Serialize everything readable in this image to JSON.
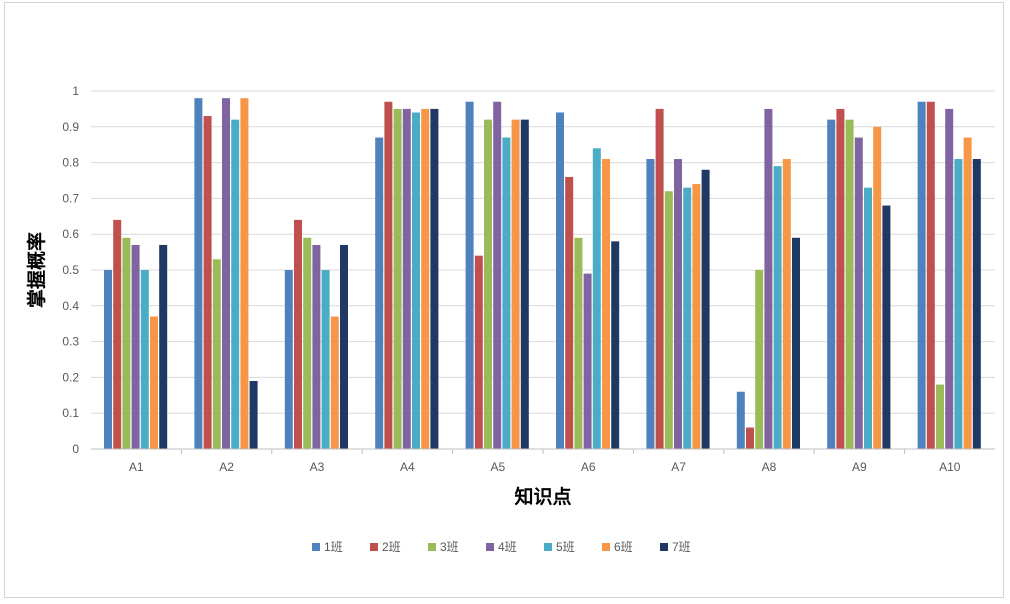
{
  "chart_data": {
    "type": "bar",
    "title": "",
    "xlabel": "知识点",
    "ylabel": "掌握概率",
    "ylim": [
      0,
      1
    ],
    "yticks": [
      "0",
      "0.1",
      "0.2",
      "0.3",
      "0.4",
      "0.5",
      "0.6",
      "0.7",
      "0.8",
      "0.9",
      "1"
    ],
    "grid": true,
    "legend_position": "bottom",
    "categories": [
      "A1",
      "A2",
      "A3",
      "A4",
      "A5",
      "A6",
      "A7",
      "A8",
      "A9",
      "A10"
    ],
    "series": [
      {
        "name": "1班",
        "color": "#4F81BD",
        "values": [
          0.5,
          0.98,
          0.5,
          0.87,
          0.97,
          0.94,
          0.81,
          0.16,
          0.92,
          0.97
        ]
      },
      {
        "name": "2班",
        "color": "#C0504D",
        "values": [
          0.64,
          0.93,
          0.64,
          0.97,
          0.54,
          0.76,
          0.95,
          0.06,
          0.95,
          0.97
        ]
      },
      {
        "name": "3班",
        "color": "#9BBB59",
        "values": [
          0.59,
          0.53,
          0.59,
          0.95,
          0.92,
          0.59,
          0.72,
          0.5,
          0.92,
          0.18
        ]
      },
      {
        "name": "4班",
        "color": "#8064A2",
        "values": [
          0.57,
          0.98,
          0.57,
          0.95,
          0.97,
          0.49,
          0.81,
          0.95,
          0.87,
          0.95
        ]
      },
      {
        "name": "5班",
        "color": "#4BACC6",
        "values": [
          0.5,
          0.92,
          0.5,
          0.94,
          0.87,
          0.84,
          0.73,
          0.79,
          0.73,
          0.81
        ]
      },
      {
        "name": "6班",
        "color": "#F79646",
        "values": [
          0.37,
          0.98,
          0.37,
          0.95,
          0.92,
          0.81,
          0.74,
          0.81,
          0.9,
          0.87
        ]
      },
      {
        "name": "7班",
        "color": "#1F3864",
        "values": [
          0.57,
          0.19,
          0.57,
          0.95,
          0.92,
          0.58,
          0.78,
          0.59,
          0.68,
          0.81
        ]
      }
    ]
  }
}
